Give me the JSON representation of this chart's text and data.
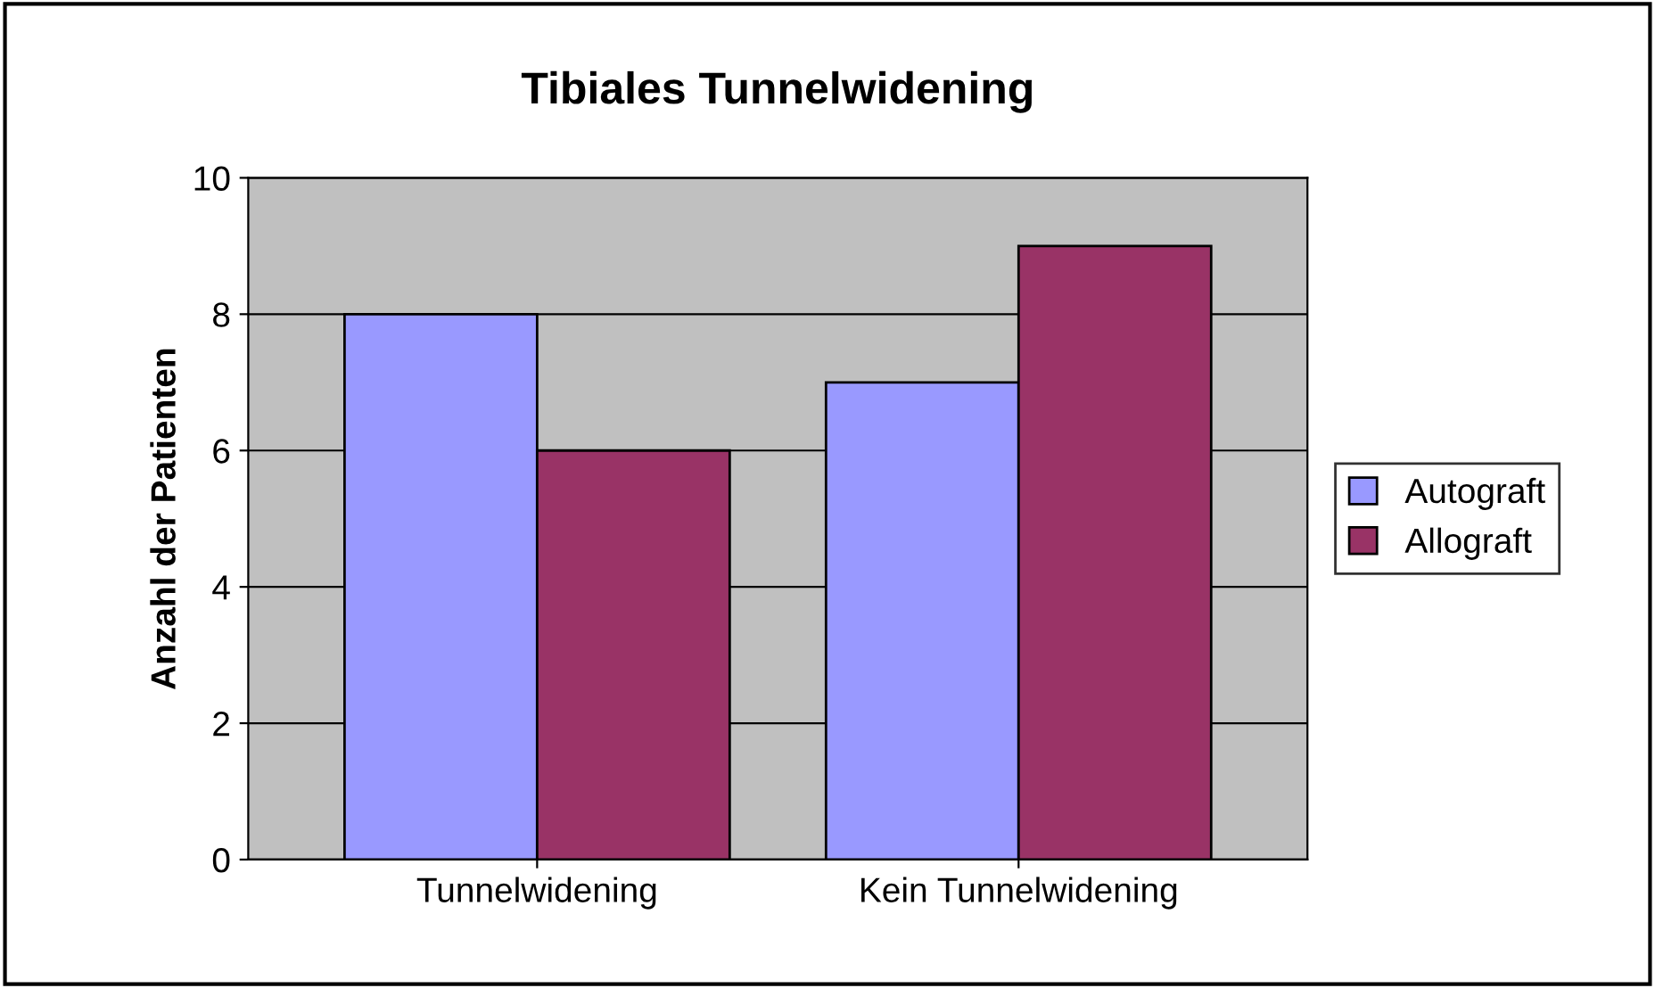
{
  "chart_data": {
    "type": "bar",
    "title": "Tibiales Tunnelwidening",
    "ylabel": "Anzahl der Patienten",
    "categories": [
      "Tunnelwidening",
      "Kein Tunnelwidening"
    ],
    "series": [
      {
        "name": "Autograft",
        "color": "#9999ff",
        "values": [
          8,
          7
        ]
      },
      {
        "name": "Allograft",
        "color": "#993366",
        "values": [
          6,
          9
        ]
      }
    ],
    "ylim": [
      0,
      10
    ],
    "yticks": [
      0,
      2,
      4,
      6,
      8,
      10
    ],
    "grid": "y",
    "legend": "right"
  }
}
